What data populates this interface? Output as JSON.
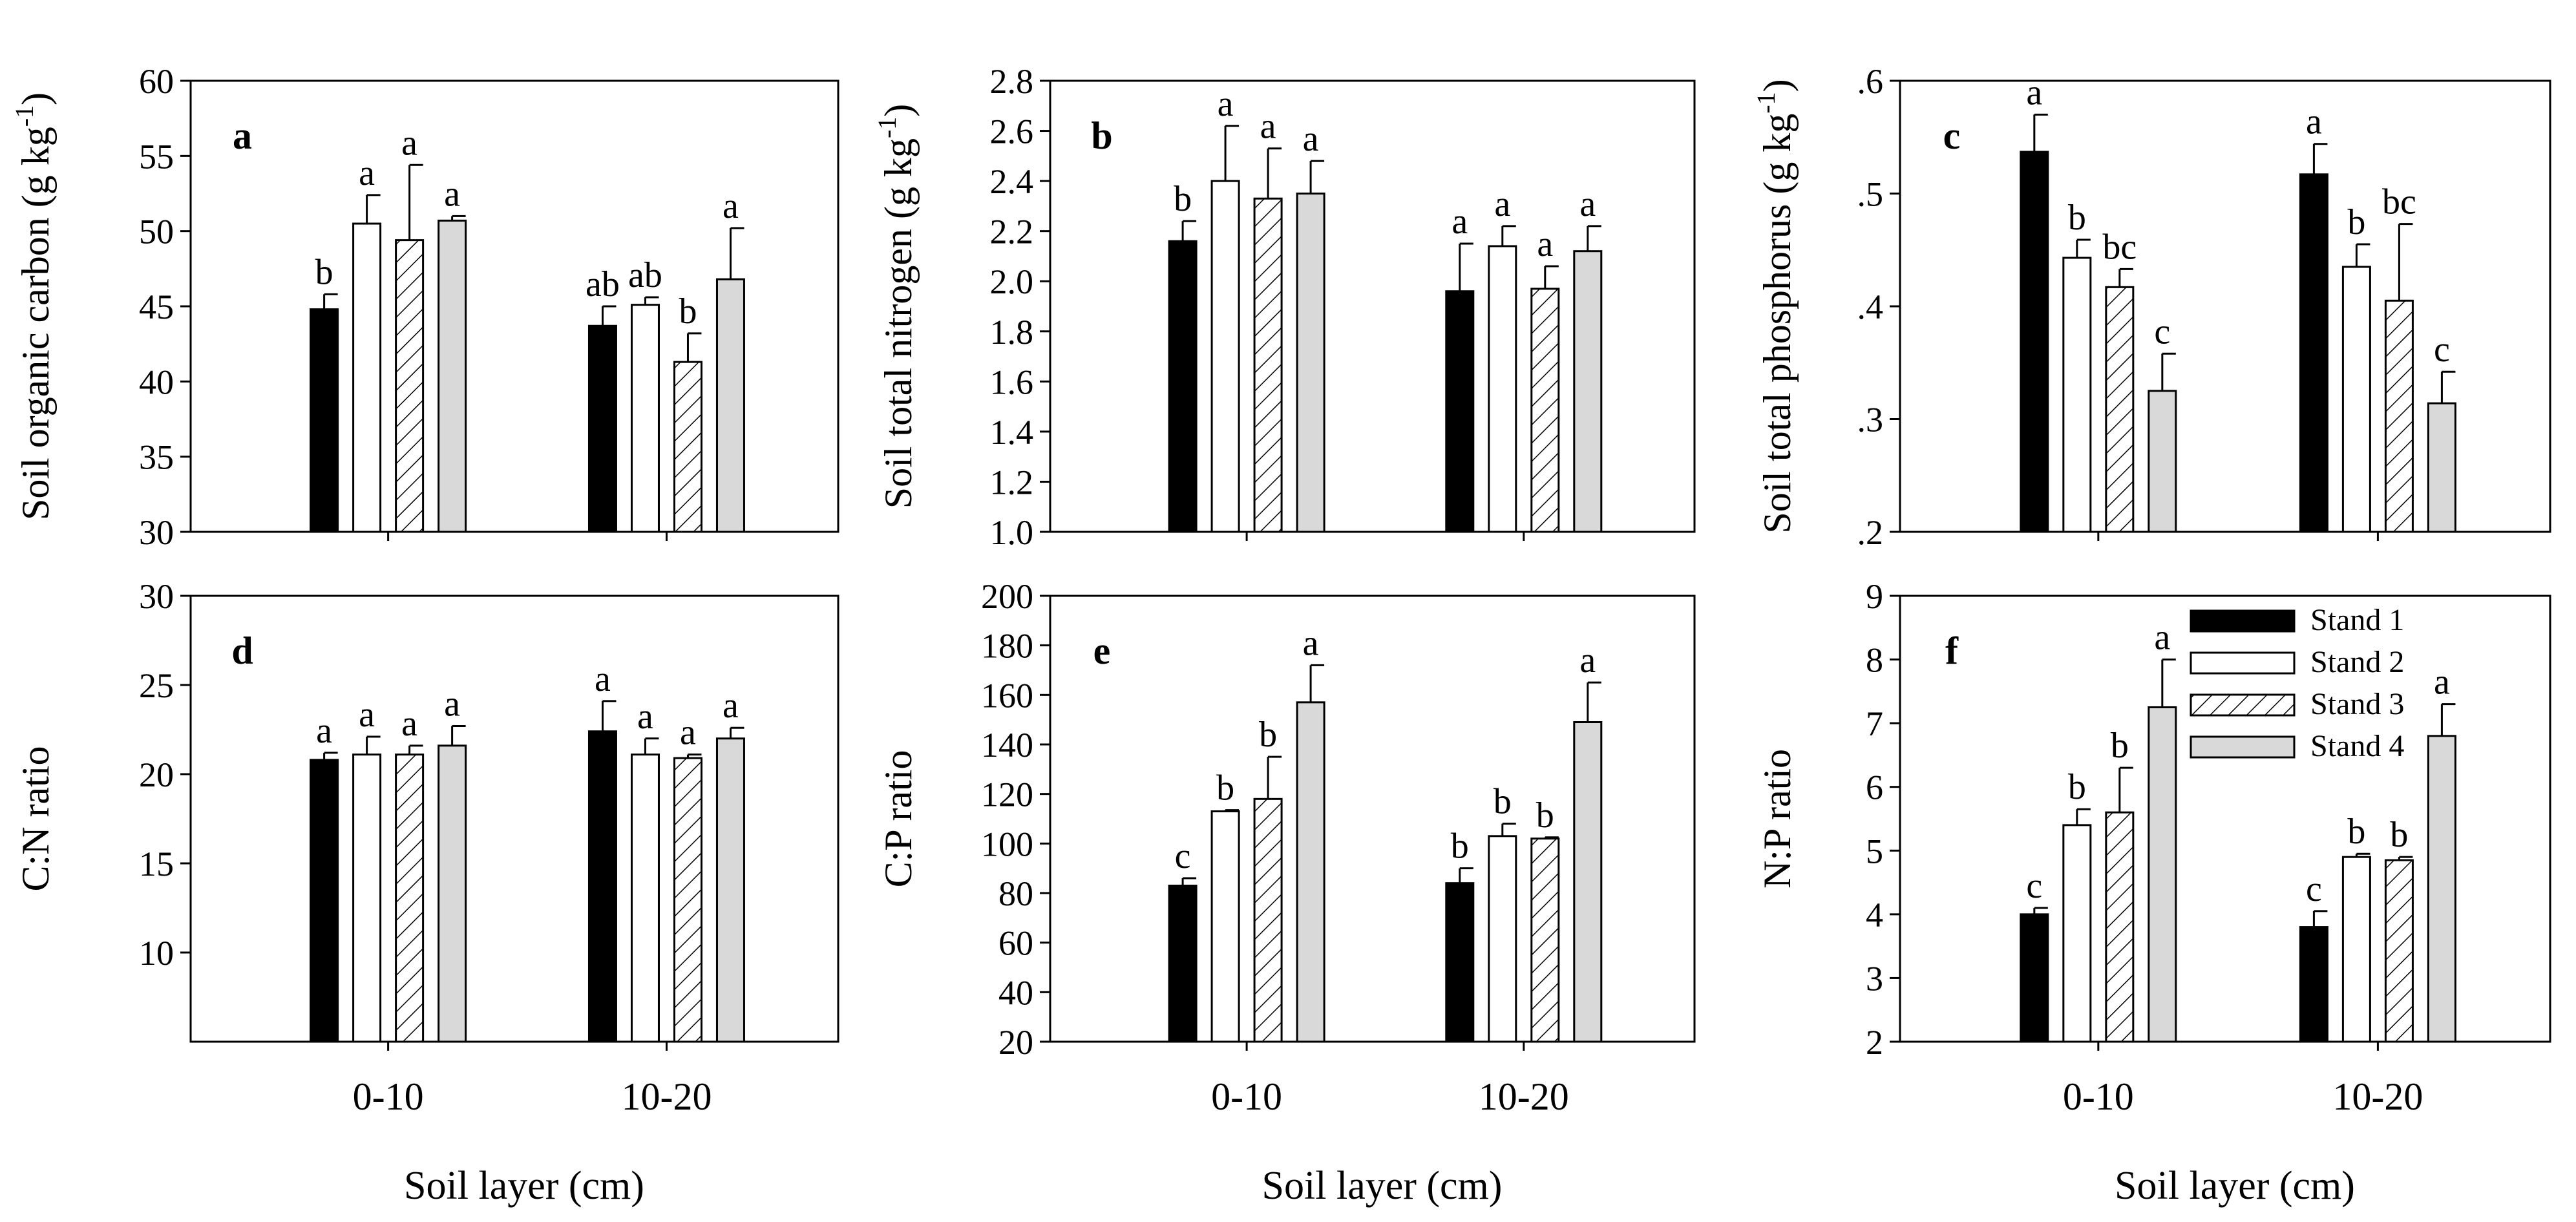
{
  "figure": {
    "xlabel": "Soil layer (cm)",
    "legend": [
      "Stand 1",
      "Stand 2",
      "Stand 3",
      "Stand 4"
    ],
    "colors": {
      "stand1": "#000000",
      "stand2": "#ffffff",
      "stand3": "#ffffff",
      "stand4": "#d9d9d9",
      "axis": "#000000"
    }
  },
  "chart_data": [
    {
      "id": "a",
      "type": "bar",
      "panel_label": "a",
      "ylabel": "Soil organic carbon (g kg",
      "ylabel_sup": "-1",
      "ylabel_tail": ")",
      "ylim": [
        30,
        60
      ],
      "yticks": [
        30,
        35,
        40,
        45,
        50,
        55,
        60
      ],
      "ytick_labels": [
        "30",
        "35",
        "40",
        "45",
        "50",
        "55",
        "60"
      ],
      "categories": [
        "0-10",
        "10-20"
      ],
      "series": [
        {
          "name": "Stand 1",
          "values": [
            44.8,
            43.7
          ],
          "errors": [
            1.0,
            1.3
          ],
          "letters": [
            "b",
            "ab"
          ]
        },
        {
          "name": "Stand 2",
          "values": [
            50.5,
            45.1
          ],
          "errors": [
            1.9,
            0.5
          ],
          "letters": [
            "a",
            "ab"
          ]
        },
        {
          "name": "Stand 3",
          "values": [
            49.4,
            41.3
          ],
          "errors": [
            5.0,
            1.9
          ],
          "letters": [
            "a",
            "b"
          ]
        },
        {
          "name": "Stand 4",
          "values": [
            50.7,
            46.8
          ],
          "errors": [
            0.3,
            3.4
          ],
          "letters": [
            "a",
            "a"
          ]
        }
      ]
    },
    {
      "id": "b",
      "type": "bar",
      "panel_label": "b",
      "ylabel": "Soil total nitrogen (g kg",
      "ylabel_sup": "-1",
      "ylabel_tail": ")",
      "ylim": [
        1.0,
        2.8
      ],
      "yticks": [
        1.0,
        1.2,
        1.4,
        1.6,
        1.8,
        2.0,
        2.2,
        2.4,
        2.6,
        2.8
      ],
      "ytick_labels": [
        "1.0",
        "1.2",
        "1.4",
        "1.6",
        "1.8",
        "2.0",
        "2.2",
        "2.4",
        "2.6",
        "2.8"
      ],
      "categories": [
        "0-10",
        "10-20"
      ],
      "series": [
        {
          "name": "Stand 1",
          "values": [
            2.16,
            1.96
          ],
          "errors": [
            0.08,
            0.19
          ],
          "letters": [
            "b",
            "a"
          ]
        },
        {
          "name": "Stand 2",
          "values": [
            2.4,
            2.14
          ],
          "errors": [
            0.22,
            0.08
          ],
          "letters": [
            "a",
            "a"
          ]
        },
        {
          "name": "Stand 3",
          "values": [
            2.33,
            1.97
          ],
          "errors": [
            0.2,
            0.09
          ],
          "letters": [
            "a",
            "a"
          ]
        },
        {
          "name": "Stand 4",
          "values": [
            2.35,
            2.12
          ],
          "errors": [
            0.13,
            0.1
          ],
          "letters": [
            "a",
            "a"
          ]
        }
      ]
    },
    {
      "id": "c",
      "type": "bar",
      "panel_label": "c",
      "ylabel": "Soil total phosphorus (g kg",
      "ylabel_sup": "-1",
      "ylabel_tail": ")",
      "ylim": [
        0.2,
        0.6
      ],
      "yticks": [
        0.2,
        0.3,
        0.4,
        0.5,
        0.6
      ],
      "ytick_labels": [
        ".2",
        ".3",
        ".4",
        ".5",
        ".6"
      ],
      "categories": [
        "0-10",
        "10-20"
      ],
      "series": [
        {
          "name": "Stand 1",
          "values": [
            0.537,
            0.517
          ],
          "errors": [
            0.033,
            0.027
          ],
          "letters": [
            "a",
            "a"
          ]
        },
        {
          "name": "Stand 2",
          "values": [
            0.443,
            0.435
          ],
          "errors": [
            0.016,
            0.02
          ],
          "letters": [
            "b",
            "b"
          ]
        },
        {
          "name": "Stand 3",
          "values": [
            0.417,
            0.405
          ],
          "errors": [
            0.016,
            0.068
          ],
          "letters": [
            "bc",
            "bc"
          ]
        },
        {
          "name": "Stand 4",
          "values": [
            0.325,
            0.314
          ],
          "errors": [
            0.033,
            0.028
          ],
          "letters": [
            "c",
            "c"
          ]
        }
      ]
    },
    {
      "id": "d",
      "type": "bar",
      "panel_label": "d",
      "ylabel": "C:N ratio",
      "ylim": [
        5,
        30
      ],
      "yticks": [
        10,
        15,
        20,
        25,
        30
      ],
      "ytick_labels": [
        "10",
        "15",
        "20",
        "25",
        "30"
      ],
      "categories": [
        "0-10",
        "10-20"
      ],
      "series": [
        {
          "name": "Stand 1",
          "values": [
            20.8,
            22.4
          ],
          "errors": [
            0.4,
            1.7
          ],
          "letters": [
            "a",
            "a"
          ]
        },
        {
          "name": "Stand 2",
          "values": [
            21.1,
            21.1
          ],
          "errors": [
            1.0,
            0.9
          ],
          "letters": [
            "a",
            "a"
          ]
        },
        {
          "name": "Stand 3",
          "values": [
            21.1,
            20.9
          ],
          "errors": [
            0.5,
            0.2
          ],
          "letters": [
            "a",
            "a"
          ]
        },
        {
          "name": "Stand 4",
          "values": [
            21.6,
            22.0
          ],
          "errors": [
            1.1,
            0.6
          ],
          "letters": [
            "a",
            "a"
          ]
        }
      ]
    },
    {
      "id": "e",
      "type": "bar",
      "panel_label": "e",
      "ylabel": "C:P ratio",
      "ylim": [
        20,
        200
      ],
      "yticks": [
        20,
        40,
        60,
        80,
        100,
        120,
        140,
        160,
        180,
        200
      ],
      "ytick_labels": [
        "20",
        "40",
        "60",
        "80",
        "100",
        "120",
        "140",
        "160",
        "180",
        "200"
      ],
      "categories": [
        "0-10",
        "10-20"
      ],
      "series": [
        {
          "name": "Stand 1",
          "values": [
            83,
            84
          ],
          "errors": [
            3,
            6
          ],
          "letters": [
            "c",
            "b"
          ]
        },
        {
          "name": "Stand 2",
          "values": [
            113,
            103
          ],
          "errors": [
            0.5,
            5
          ],
          "letters": [
            "b",
            "b"
          ]
        },
        {
          "name": "Stand 3",
          "values": [
            118,
            102
          ],
          "errors": [
            17,
            0.5
          ],
          "letters": [
            "b",
            "b"
          ]
        },
        {
          "name": "Stand 4",
          "values": [
            157,
            149
          ],
          "errors": [
            15,
            16
          ],
          "letters": [
            "a",
            "a"
          ]
        }
      ]
    },
    {
      "id": "f",
      "type": "bar",
      "panel_label": "f",
      "ylabel": "N:P ratio",
      "ylim": [
        2,
        9
      ],
      "yticks": [
        2,
        3,
        4,
        5,
        6,
        7,
        8,
        9
      ],
      "ytick_labels": [
        "2",
        "3",
        "4",
        "5",
        "6",
        "7",
        "8",
        "9"
      ],
      "categories": [
        "0-10",
        "10-20"
      ],
      "show_legend": true,
      "series": [
        {
          "name": "Stand 1",
          "values": [
            4.0,
            3.8
          ],
          "errors": [
            0.1,
            0.25
          ],
          "letters": [
            "c",
            "c"
          ]
        },
        {
          "name": "Stand 2",
          "values": [
            5.4,
            4.9
          ],
          "errors": [
            0.25,
            0.05
          ],
          "letters": [
            "b",
            "b"
          ]
        },
        {
          "name": "Stand 3",
          "values": [
            5.6,
            4.85
          ],
          "errors": [
            0.7,
            0.05
          ],
          "letters": [
            "b",
            "b"
          ]
        },
        {
          "name": "Stand 4",
          "values": [
            7.25,
            6.8
          ],
          "errors": [
            0.75,
            0.5
          ],
          "letters": [
            "a",
            "a"
          ]
        }
      ]
    }
  ]
}
